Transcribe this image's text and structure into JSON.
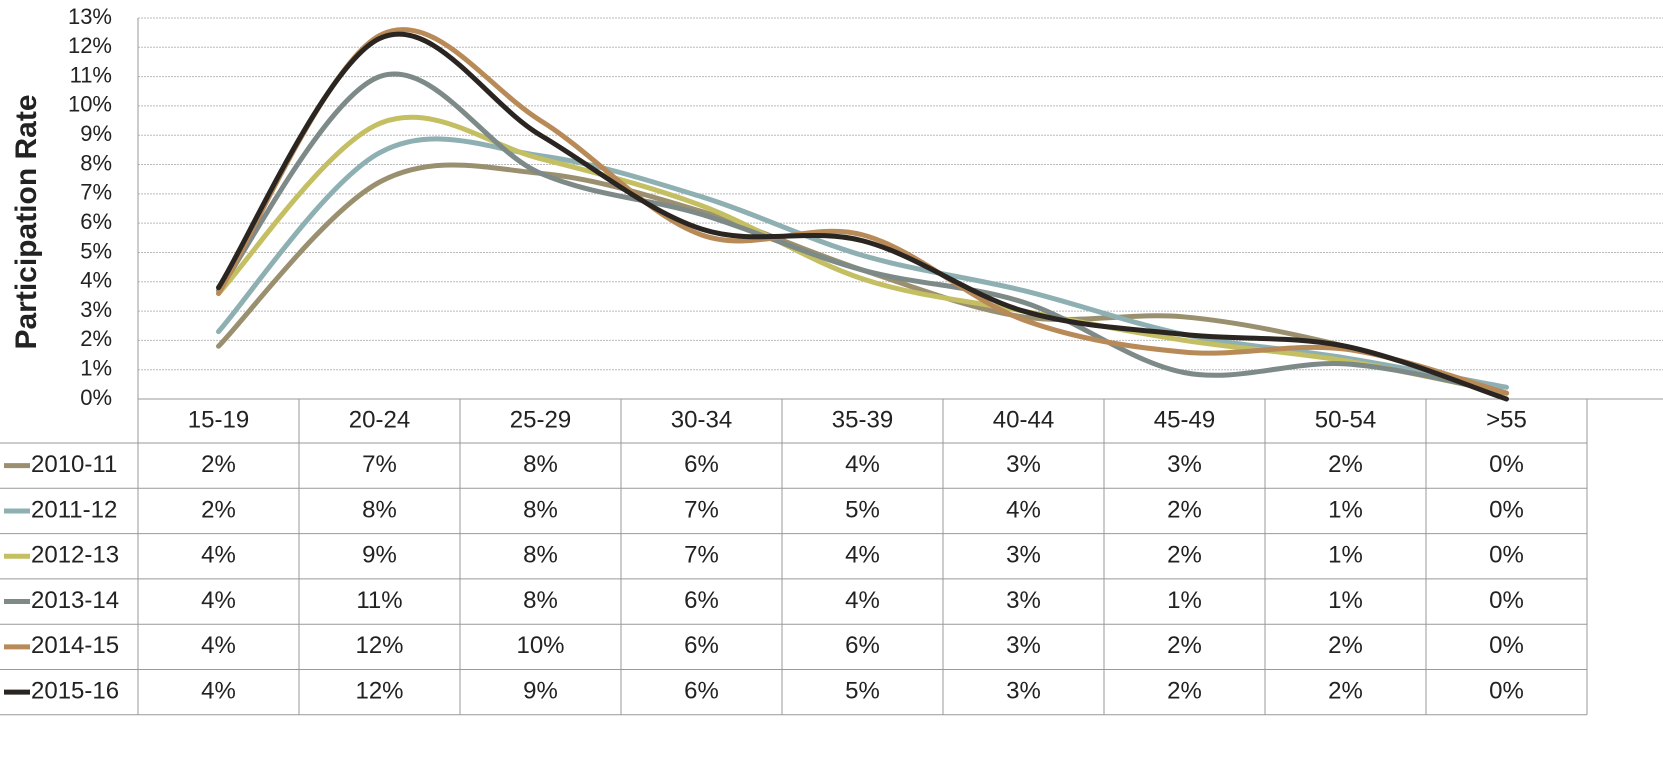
{
  "chart_data": {
    "type": "line",
    "y_label": "Participation Rate",
    "categories": [
      "15-19",
      "20-24",
      "25-29",
      "30-34",
      "35-39",
      "40-44",
      "45-49",
      "50-54",
      ">55"
    ],
    "ylim": [
      0,
      13
    ],
    "yticks": [
      {
        "value": 0,
        "label": "0%"
      },
      {
        "value": 1,
        "label": "1%"
      },
      {
        "value": 2,
        "label": "2%"
      },
      {
        "value": 3,
        "label": "3%"
      },
      {
        "value": 4,
        "label": "4%"
      },
      {
        "value": 5,
        "label": "5%"
      },
      {
        "value": 6,
        "label": "6%"
      },
      {
        "value": 7,
        "label": "7%"
      },
      {
        "value": 8,
        "label": "8%"
      },
      {
        "value": 9,
        "label": "9%"
      },
      {
        "value": 10,
        "label": "10%"
      },
      {
        "value": 11,
        "label": "11%"
      },
      {
        "value": 12,
        "label": "12%"
      },
      {
        "value": 13,
        "label": "13%"
      }
    ],
    "grid": true,
    "smooth": true,
    "series": [
      {
        "name": "2010-11",
        "color": "#9a9070",
        "values": [
          1.8,
          7.4,
          7.7,
          6.4,
          4.4,
          2.8,
          2.8,
          1.8,
          0.2
        ],
        "value_labels": [
          "2%",
          "7%",
          "8%",
          "6%",
          "4%",
          "3%",
          "3%",
          "2%",
          "0%"
        ]
      },
      {
        "name": "2011-12",
        "color": "#8fb0b3",
        "values": [
          2.3,
          8.4,
          8.3,
          6.9,
          4.9,
          3.7,
          2.2,
          1.4,
          0.4
        ],
        "value_labels": [
          "2%",
          "8%",
          "8%",
          "7%",
          "5%",
          "4%",
          "2%",
          "1%",
          "0%"
        ]
      },
      {
        "name": "2012-13",
        "color": "#c4bf63",
        "values": [
          3.6,
          9.4,
          8.2,
          6.6,
          4.1,
          3.0,
          2.0,
          1.3,
          0.2
        ],
        "value_labels": [
          "4%",
          "9%",
          "8%",
          "7%",
          "4%",
          "3%",
          "2%",
          "1%",
          "0%"
        ]
      },
      {
        "name": "2013-14",
        "color": "#7d8a88",
        "values": [
          3.7,
          11.0,
          7.7,
          6.3,
          4.4,
          3.3,
          0.9,
          1.2,
          0.2
        ],
        "value_labels": [
          "4%",
          "11%",
          "8%",
          "6%",
          "4%",
          "3%",
          "1%",
          "1%",
          "0%"
        ]
      },
      {
        "name": "2014-15",
        "color": "#b88a58",
        "values": [
          3.6,
          12.4,
          9.5,
          5.6,
          5.6,
          2.7,
          1.6,
          1.7,
          0.2
        ],
        "value_labels": [
          "4%",
          "12%",
          "10%",
          "6%",
          "6%",
          "3%",
          "2%",
          "2%",
          "0%"
        ]
      },
      {
        "name": "2015-16",
        "color": "#2a2520",
        "values": [
          3.8,
          12.3,
          9.0,
          5.8,
          5.4,
          3.0,
          2.2,
          1.8,
          0.0
        ],
        "value_labels": [
          "4%",
          "12%",
          "9%",
          "6%",
          "5%",
          "3%",
          "2%",
          "2%",
          "0%"
        ]
      }
    ]
  }
}
